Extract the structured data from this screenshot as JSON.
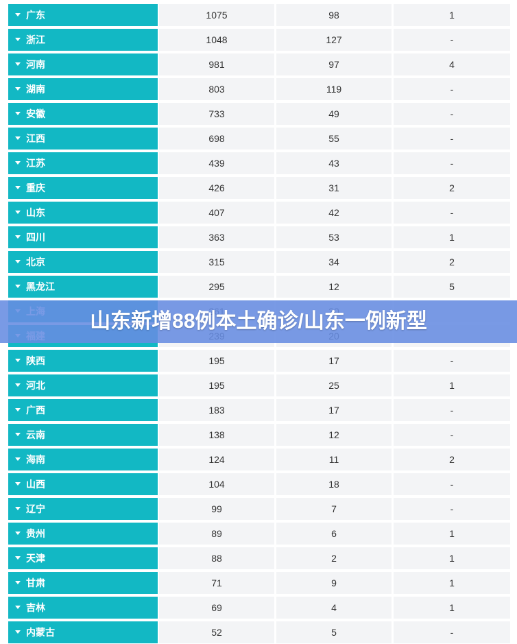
{
  "banner": {
    "title": "山东新增88例本土确诊/山东一例新型"
  },
  "colors": {
    "province_bg": "#12b8c4",
    "cell_bg": "#f3f4f6",
    "banner_bg": "#668ce1"
  },
  "rows": [
    {
      "province": "广东",
      "c1": "1075",
      "c2": "98",
      "c3": "1"
    },
    {
      "province": "浙江",
      "c1": "1048",
      "c2": "127",
      "c3": "-"
    },
    {
      "province": "河南",
      "c1": "981",
      "c2": "97",
      "c3": "4"
    },
    {
      "province": "湖南",
      "c1": "803",
      "c2": "119",
      "c3": "-"
    },
    {
      "province": "安徽",
      "c1": "733",
      "c2": "49",
      "c3": "-"
    },
    {
      "province": "江西",
      "c1": "698",
      "c2": "55",
      "c3": "-"
    },
    {
      "province": "江苏",
      "c1": "439",
      "c2": "43",
      "c3": "-"
    },
    {
      "province": "重庆",
      "c1": "426",
      "c2": "31",
      "c3": "2"
    },
    {
      "province": "山东",
      "c1": "407",
      "c2": "42",
      "c3": "-"
    },
    {
      "province": "四川",
      "c1": "363",
      "c2": "53",
      "c3": "1"
    },
    {
      "province": "北京",
      "c1": "315",
      "c2": "34",
      "c3": "2"
    },
    {
      "province": "黑龙江",
      "c1": "295",
      "c2": "12",
      "c3": "5"
    },
    {
      "province": "上海",
      "c1": "261",
      "c2": "30",
      "c3": ""
    },
    {
      "province": "福建",
      "c1": "239",
      "c2": "20",
      "c3": ""
    },
    {
      "province": "陕西",
      "c1": "195",
      "c2": "17",
      "c3": "-"
    },
    {
      "province": "河北",
      "c1": "195",
      "c2": "25",
      "c3": "1"
    },
    {
      "province": "广西",
      "c1": "183",
      "c2": "17",
      "c3": "-"
    },
    {
      "province": "云南",
      "c1": "138",
      "c2": "12",
      "c3": "-"
    },
    {
      "province": "海南",
      "c1": "124",
      "c2": "11",
      "c3": "2"
    },
    {
      "province": "山西",
      "c1": "104",
      "c2": "18",
      "c3": "-"
    },
    {
      "province": "辽宁",
      "c1": "99",
      "c2": "7",
      "c3": "-"
    },
    {
      "province": "贵州",
      "c1": "89",
      "c2": "6",
      "c3": "1"
    },
    {
      "province": "天津",
      "c1": "88",
      "c2": "2",
      "c3": "1"
    },
    {
      "province": "甘肃",
      "c1": "71",
      "c2": "9",
      "c3": "1"
    },
    {
      "province": "吉林",
      "c1": "69",
      "c2": "4",
      "c3": "1"
    },
    {
      "province": "内蒙古",
      "c1": "52",
      "c2": "5",
      "c3": "-"
    }
  ]
}
